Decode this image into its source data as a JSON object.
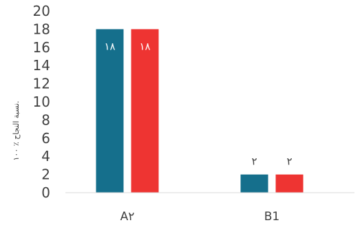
{
  "chart_data": {
    "type": "bar",
    "categories": [
      "A٢",
      "B1"
    ],
    "series": [
      {
        "values": [
          18,
          2
        ],
        "color": "#156f8c"
      },
      {
        "values": [
          18,
          2
        ],
        "color": "#ee3432"
      }
    ],
    "data_labels": [
      [
        "١٨",
        "٢"
      ],
      [
        "١٨",
        "٢"
      ]
    ],
    "ylabel": "نسبة النجاح ٪ ١٠٠.",
    "ylim": [
      0,
      20
    ],
    "yticks": [
      0,
      2,
      4,
      6,
      8,
      10,
      12,
      14,
      16,
      18,
      20
    ],
    "grid": false,
    "legend": "none"
  }
}
